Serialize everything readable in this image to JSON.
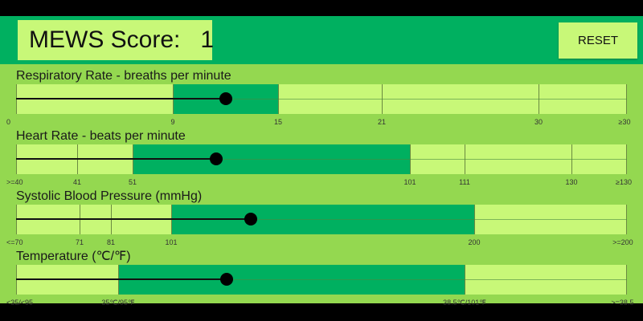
{
  "header": {
    "score_label": "MEWS Score:",
    "score_value": "1",
    "reset_label": "RESET"
  },
  "colors": {
    "header": "#00b060",
    "panel": "#94d850",
    "light_zone": "#c8f878",
    "normal_zone": "#00b060"
  },
  "sliders": [
    {
      "title": "Respiratory Rate - breaths per minute",
      "ticks": [
        "0",
        "9",
        "15",
        "21",
        "30",
        "≥30"
      ],
      "normal_range": [
        "9",
        "15"
      ],
      "value": 12
    },
    {
      "title": "Heart Rate - beats per minute",
      "ticks": [
        ">=40",
        "41",
        "51",
        "101",
        "111",
        "130",
        "≥130"
      ],
      "normal_range": [
        "51",
        "101"
      ],
      "value": 66
    },
    {
      "title": "Systolic Blood Pressure (mmHg)",
      "ticks": [
        "<=70",
        "71",
        "81",
        "101",
        "200",
        ">=200"
      ],
      "normal_range": [
        "101",
        "200"
      ],
      "value": 127
    },
    {
      "title": "Temperature (℃/℉)",
      "ticks": [
        "<35/<95",
        "35℃/95℉",
        "38.5℃/101℉",
        ">=38.5"
      ],
      "normal_range": [
        "35℃/95℉",
        "38.5℃/101℉"
      ],
      "value": 36.1
    }
  ]
}
